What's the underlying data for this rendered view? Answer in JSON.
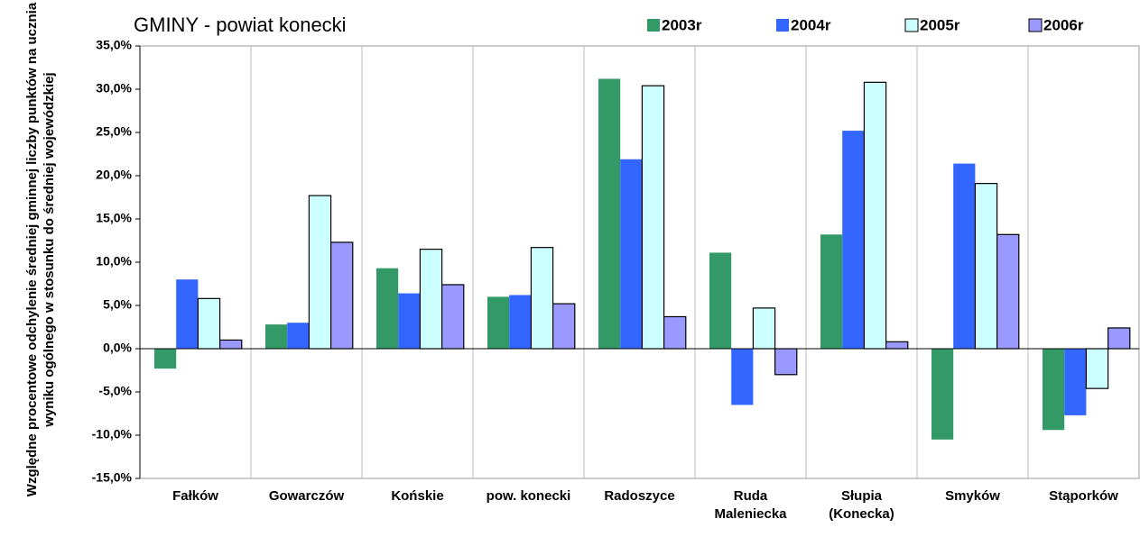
{
  "chart_data": {
    "type": "bar",
    "title": "GMINY -  powiat konecki",
    "y_label": "Względne procentowe odchylenie średniej gminnej liczby punktów na ucznia wyniku ogólnego w stosunku do średniej wojewódzkiej",
    "categories": [
      "Fałków",
      "Gowarczów",
      "Końskie",
      "pow. konecki",
      "Radoszyce",
      "Ruda Maleniecka",
      "Słupia (Konecka)",
      "Smyków",
      "Stąporków"
    ],
    "series": [
      {
        "name": "2003r",
        "color": "#339966",
        "values": [
          -2.3,
          2.8,
          9.3,
          6.0,
          31.2,
          11.1,
          13.2,
          -10.5,
          -9.4
        ]
      },
      {
        "name": "2004r",
        "color": "#3366ff",
        "values": [
          8.0,
          3.0,
          6.4,
          6.2,
          21.9,
          -6.5,
          25.2,
          21.4,
          -7.7
        ]
      },
      {
        "name": "2005r",
        "color": "#ccffff",
        "border": "#000000",
        "values": [
          5.8,
          17.7,
          11.5,
          11.7,
          30.4,
          4.7,
          30.8,
          19.1,
          -4.6
        ]
      },
      {
        "name": "2006r",
        "color": "#9999ff",
        "border": "#000000",
        "values": [
          1.0,
          12.3,
          7.4,
          5.2,
          3.7,
          -3.0,
          0.8,
          13.2,
          2.4
        ]
      }
    ],
    "ylim": [
      -15,
      35
    ],
    "yticks": [
      {
        "value": -15,
        "label": "-15,0%"
      },
      {
        "value": -10,
        "label": "-10,0%"
      },
      {
        "value": -5,
        "label": "-5,0%"
      },
      {
        "value": 0,
        "label": "0,0%"
      },
      {
        "value": 5,
        "label": "5,0%"
      },
      {
        "value": 10,
        "label": "10,0%"
      },
      {
        "value": 15,
        "label": "15,0%"
      },
      {
        "value": 20,
        "label": "20,0%"
      },
      {
        "value": 25,
        "label": "25,0%"
      },
      {
        "value": 30,
        "label": "30,0%"
      },
      {
        "value": 35,
        "label": "35,0%"
      }
    ],
    "legend": "top-right"
  }
}
